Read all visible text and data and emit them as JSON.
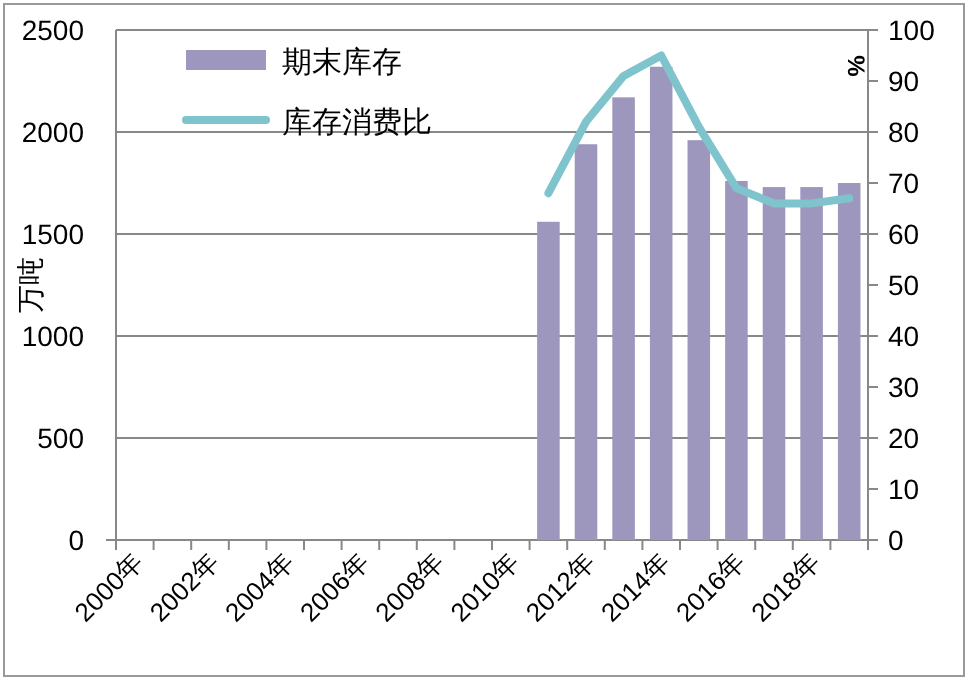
{
  "chart_data": {
    "type": "bar",
    "ylabel": "万吨",
    "y2label": "%",
    "categories": [
      "2000年",
      null,
      "2002年",
      null,
      "2004年",
      null,
      "2006年",
      null,
      "2008年",
      null,
      "2010年",
      null,
      "2012年",
      null,
      "2014年",
      null,
      "2016年",
      null,
      "2018年",
      null
    ],
    "series": [
      {
        "name": "期末库存",
        "color": "#9e97bd",
        "values": [
          null,
          null,
          null,
          null,
          null,
          null,
          null,
          null,
          null,
          null,
          null,
          1560,
          1940,
          2170,
          2320,
          1960,
          1760,
          1730,
          1730,
          1750
        ]
      },
      {
        "name": "库存消费比",
        "type": "line",
        "axis": "y2",
        "color": "#7fc4cc",
        "values": [
          null,
          null,
          null,
          null,
          null,
          null,
          null,
          null,
          null,
          null,
          null,
          68,
          82,
          91,
          95,
          81,
          69,
          66,
          66,
          67
        ]
      }
    ],
    "ylim": [
      0,
      2500
    ],
    "yticks": [
      0,
      500,
      1000,
      1500,
      2000,
      2500
    ],
    "y2lim": [
      0,
      100
    ],
    "y2ticks": [
      0,
      10,
      20,
      30,
      40,
      50,
      60,
      70,
      80,
      90,
      100
    ],
    "grid": "y",
    "legend": "top left"
  }
}
